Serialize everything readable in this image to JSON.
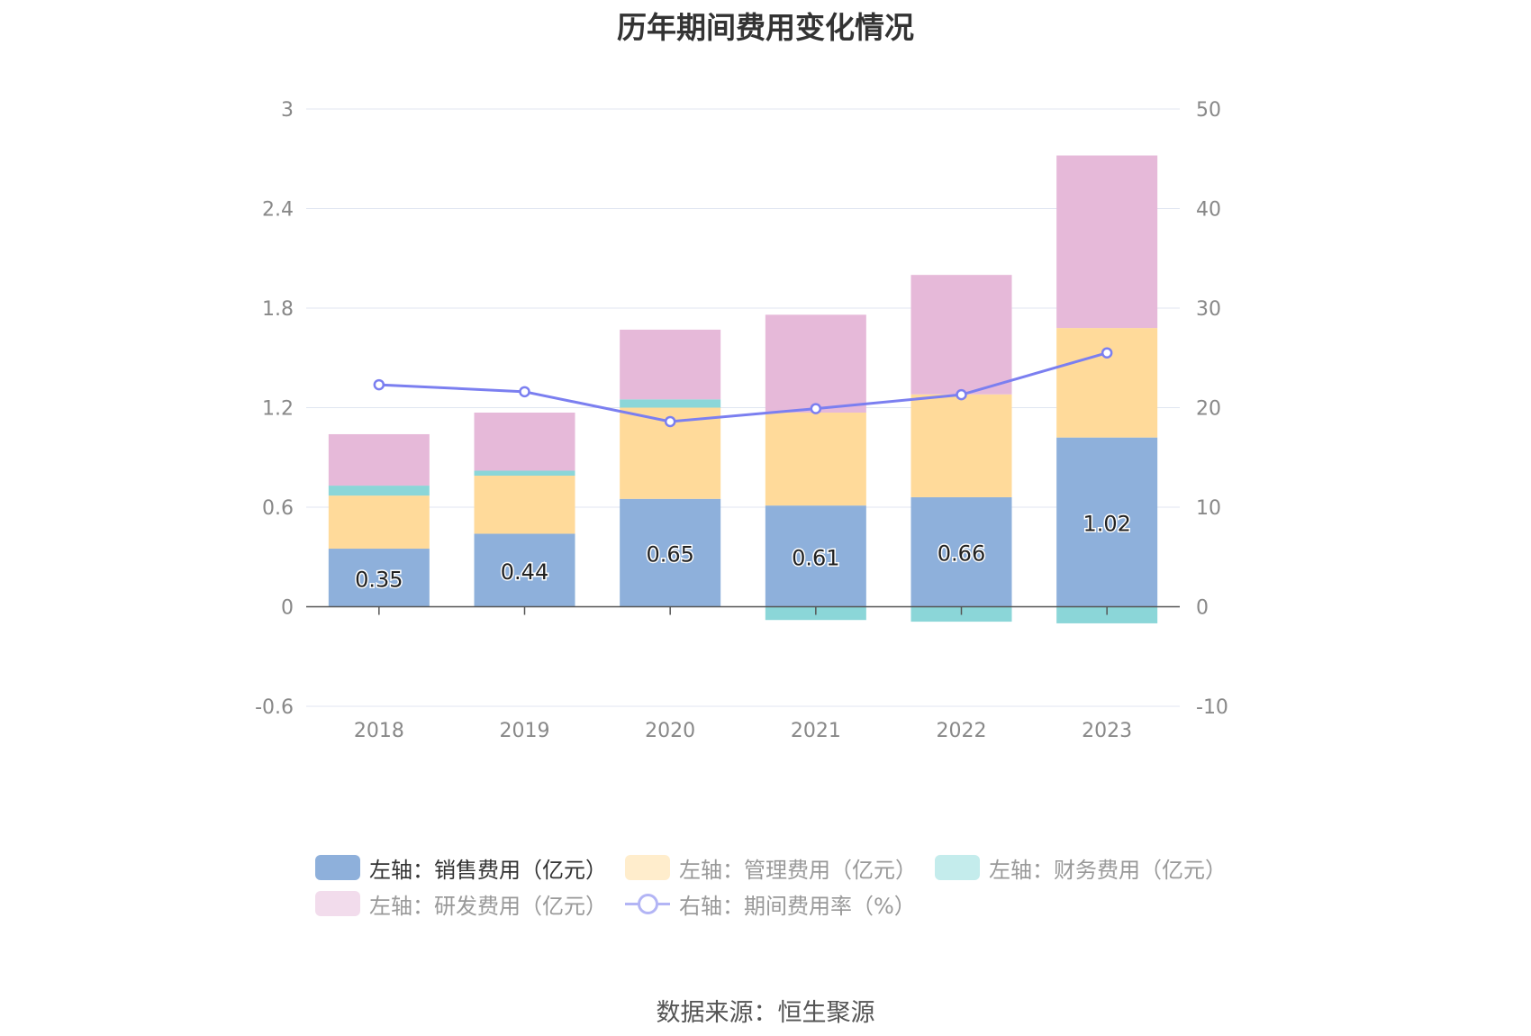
{
  "chart_data": {
    "type": "bar",
    "title": "历年期间费用变化情况",
    "categories": [
      "2018",
      "2019",
      "2020",
      "2021",
      "2022",
      "2023"
    ],
    "stacked": true,
    "left_axis": {
      "ylim": [
        -0.6,
        3
      ],
      "ticks": [
        "3",
        "2.4",
        "1.8",
        "1.2",
        "0.6",
        "0",
        "-0.6"
      ]
    },
    "right_axis": {
      "ylim": [
        -10,
        50
      ],
      "ticks": [
        "50",
        "40",
        "30",
        "20",
        "10",
        "0",
        "-10"
      ]
    },
    "series": [
      {
        "name": "左轴：销售费用（亿元）",
        "axis": "left",
        "color": "#8eb0db",
        "values": [
          0.35,
          0.44,
          0.65,
          0.61,
          0.66,
          1.02
        ],
        "labels": [
          "0.35",
          "0.44",
          "0.65",
          "0.61",
          "0.66",
          "1.02"
        ]
      },
      {
        "name": "左轴：管理费用（亿元）",
        "axis": "left",
        "color": "#ffda9a",
        "values": [
          0.32,
          0.35,
          0.55,
          0.56,
          0.62,
          0.66
        ]
      },
      {
        "name": "左轴：财务费用（亿元）",
        "axis": "left",
        "color": "#8bd6d8",
        "values": [
          0.06,
          0.03,
          0.05,
          -0.08,
          -0.09,
          -0.1
        ]
      },
      {
        "name": "左轴：研发费用（亿元）",
        "axis": "left",
        "color": "#e6b9d9",
        "values": [
          0.31,
          0.35,
          0.42,
          0.59,
          0.72,
          1.04
        ]
      },
      {
        "name": "右轴：期间费用率（%）",
        "axis": "right",
        "type": "line",
        "color": "#7b7ff0",
        "values": [
          22.3,
          21.6,
          18.6,
          19.9,
          21.3,
          25.5
        ]
      }
    ]
  },
  "legend": [
    {
      "label": "左轴：销售费用（亿元）",
      "swatch": "#8eb0db",
      "kind": "bar",
      "active": true
    },
    {
      "label": "左轴：管理费用（亿元）",
      "swatch": "#ffedcc",
      "kind": "bar",
      "active": false
    },
    {
      "label": "左轴：财务费用（亿元）",
      "swatch": "#c4ecec",
      "kind": "bar",
      "active": false
    },
    {
      "label": "左轴：研发费用（亿元）",
      "swatch": "#f2dcec",
      "kind": "bar",
      "active": false
    },
    {
      "label": "右轴：期间费用率（%）",
      "swatch": "#b3b5f5",
      "kind": "line",
      "active": false
    }
  ],
  "source": "数据来源：恒生聚源"
}
